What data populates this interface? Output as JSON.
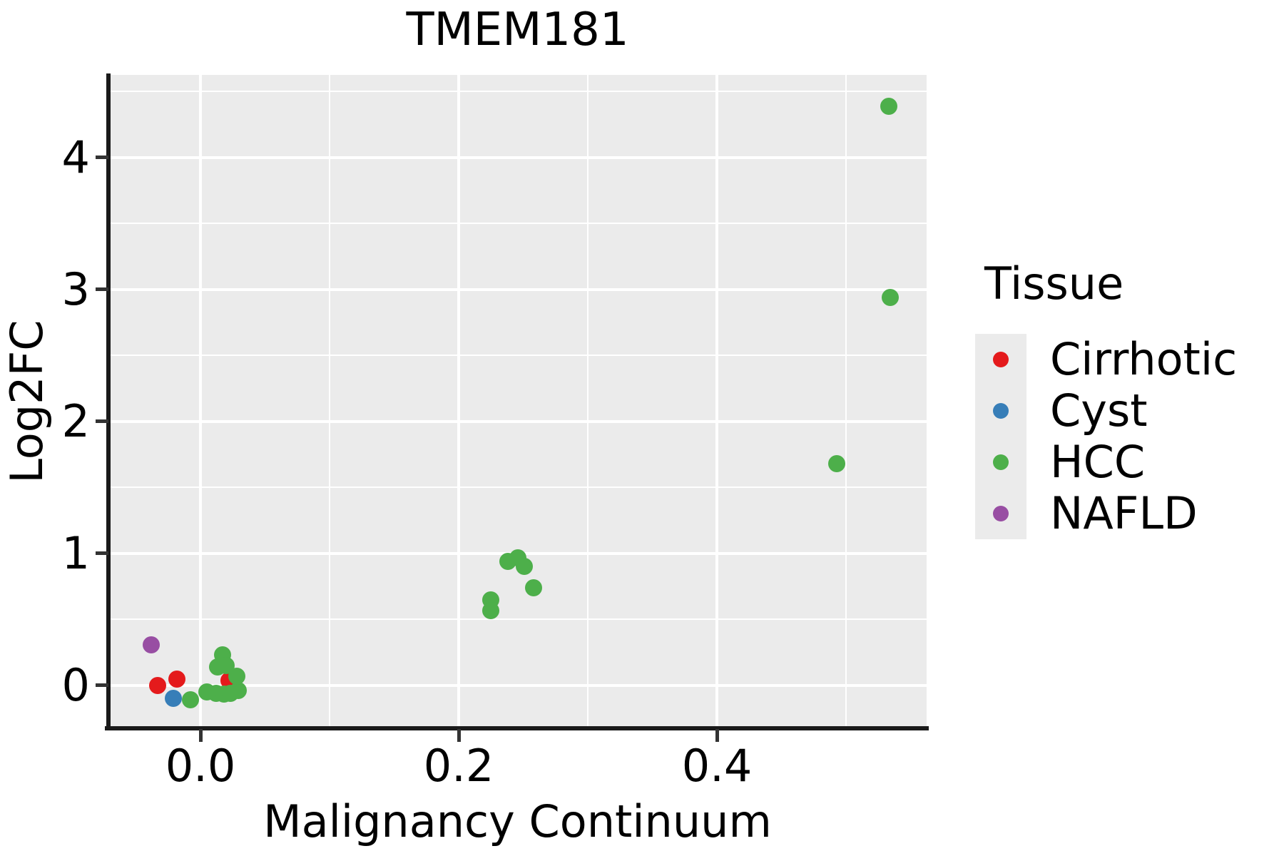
{
  "title": "TMEM181",
  "axes": {
    "x": {
      "label": "Malignancy Continuum",
      "ticks": [
        {
          "value": 0.0,
          "label": "0.0"
        },
        {
          "value": 0.2,
          "label": "0.2"
        },
        {
          "value": 0.4,
          "label": "0.4"
        }
      ]
    },
    "y": {
      "label": "Log2FC",
      "ticks": [
        {
          "value": 0,
          "label": "0"
        },
        {
          "value": 1,
          "label": "1"
        },
        {
          "value": 2,
          "label": "2"
        },
        {
          "value": 3,
          "label": "3"
        },
        {
          "value": 4,
          "label": "4"
        }
      ]
    }
  },
  "legend": {
    "title": "Tissue",
    "items": [
      {
        "label": "Cirrhotic",
        "color": "#E41A1C"
      },
      {
        "label": "Cyst",
        "color": "#377EB8"
      },
      {
        "label": "HCC",
        "color": "#4DAF4A"
      },
      {
        "label": "NAFLD",
        "color": "#984EA3"
      }
    ]
  },
  "colors": {
    "panel_background": "#EBEBEB",
    "gridline": "#FFFFFF",
    "axis_line": "#1A1A1A",
    "cirrhotic": "#E41A1C",
    "cyst": "#377EB8",
    "hcc": "#4DAF4A",
    "nafld": "#984EA3"
  },
  "chart_data": {
    "type": "scatter",
    "title": "TMEM181",
    "xlabel": "Malignancy Continuum",
    "ylabel": "Log2FC",
    "xlim": [
      -0.0713,
      0.5624
    ],
    "ylim": [
      -0.319,
      4.627
    ],
    "grid": true,
    "legend_position": "right",
    "x_major_gridlines": [
      0.0,
      0.2,
      0.4
    ],
    "x_minor_gridlines": [
      0.1,
      0.3,
      0.5
    ],
    "y_major_gridlines": [
      0,
      1,
      2,
      3,
      4
    ],
    "y_minor_gridlines": [
      0.5,
      1.5,
      2.5,
      3.5,
      4.5
    ],
    "series": [
      {
        "name": "Cirrhotic",
        "color": "#E41A1C",
        "points": [
          [
            -0.033,
            0.0
          ],
          [
            -0.018,
            0.05
          ],
          [
            0.022,
            0.04
          ]
        ]
      },
      {
        "name": "Cyst",
        "color": "#377EB8",
        "points": [
          [
            -0.021,
            -0.1
          ]
        ]
      },
      {
        "name": "HCC",
        "color": "#4DAF4A",
        "points": [
          [
            -0.008,
            -0.11
          ],
          [
            0.005,
            -0.05
          ],
          [
            0.012,
            -0.06
          ],
          [
            0.018,
            -0.065
          ],
          [
            0.023,
            -0.06
          ],
          [
            0.029,
            -0.04
          ],
          [
            0.013,
            0.14
          ],
          [
            0.017,
            0.23
          ],
          [
            0.02,
            0.15
          ],
          [
            0.028,
            0.07
          ],
          [
            0.225,
            0.65
          ],
          [
            0.225,
            0.57
          ],
          [
            0.238,
            0.94
          ],
          [
            0.246,
            0.97
          ],
          [
            0.251,
            0.9
          ],
          [
            0.258,
            0.74
          ],
          [
            0.493,
            1.68
          ],
          [
            0.533,
            4.39
          ],
          [
            0.534,
            2.94
          ]
        ]
      },
      {
        "name": "NAFLD",
        "color": "#984EA3",
        "points": [
          [
            -0.038,
            0.31
          ]
        ]
      }
    ]
  }
}
